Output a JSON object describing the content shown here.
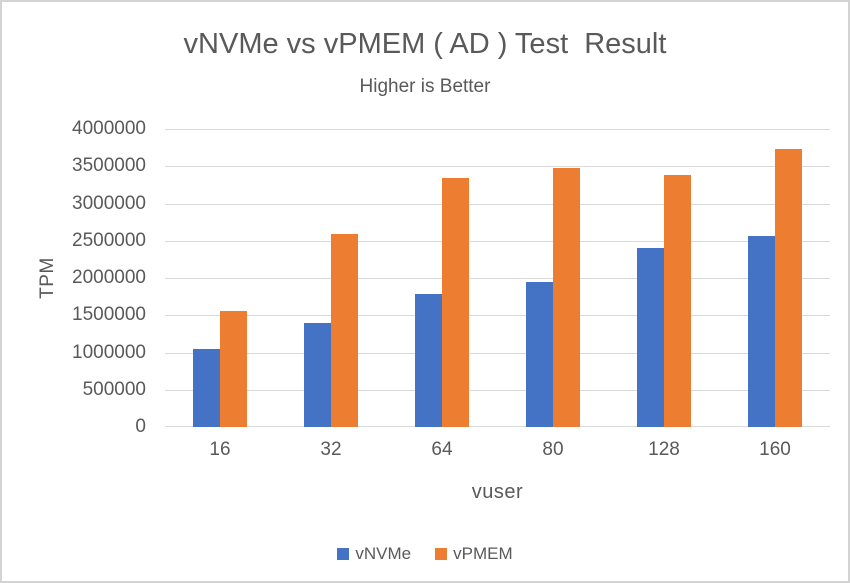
{
  "chart_data": {
    "type": "bar",
    "title": "vNVMe vs vPMEM ( AD ) Test  Result",
    "subtitle": "Higher is Better",
    "xlabel": "vuser",
    "ylabel": "TPM",
    "categories": [
      "16",
      "32",
      "64",
      "80",
      "128",
      "160"
    ],
    "series": [
      {
        "name": "vNVMe",
        "color": "#4472C4",
        "values": [
          1050000,
          1400000,
          1780000,
          1950000,
          2400000,
          2570000
        ]
      },
      {
        "name": "vPMEM",
        "color": "#ED7D31",
        "values": [
          1560000,
          2590000,
          3340000,
          3470000,
          3380000,
          3730000
        ]
      }
    ],
    "ylim": [
      0,
      4000000
    ],
    "ytick_step": 500000,
    "yticks": [
      0,
      500000,
      1000000,
      1500000,
      2000000,
      2500000,
      3000000,
      3500000,
      4000000
    ],
    "grid": true,
    "legend_position": "bottom",
    "colors": {
      "text": "#595959",
      "gridline": "#d9d9d9",
      "background": "#ffffff",
      "frame_border": "#d3d3d3"
    }
  }
}
